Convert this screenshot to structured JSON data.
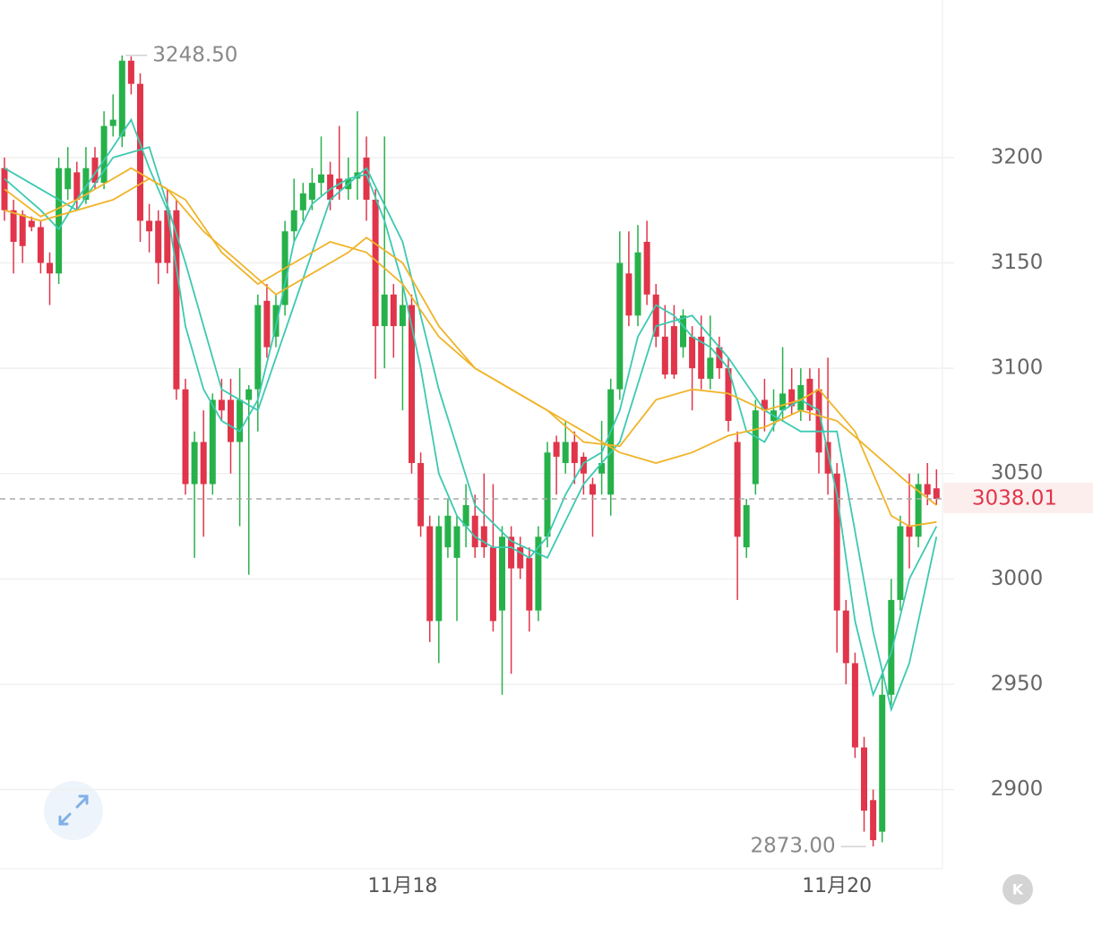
{
  "chart_data": {
    "type": "candlestick",
    "categories": [
      null,
      null,
      null,
      null,
      null,
      null,
      null,
      null,
      null,
      null,
      null,
      null,
      null,
      null,
      null,
      null,
      null,
      null,
      null,
      null,
      null,
      null,
      null,
      null,
      null,
      null,
      null,
      null,
      null,
      null,
      null,
      null,
      null,
      null,
      null,
      null,
      null,
      null,
      null,
      null,
      null,
      null,
      null,
      null,
      "11月18",
      null,
      null,
      null,
      null,
      null,
      null,
      null,
      null,
      null,
      null,
      null,
      null,
      null,
      null,
      null,
      null,
      null,
      null,
      null,
      null,
      null,
      null,
      null,
      null,
      null,
      null,
      null,
      null,
      null,
      null,
      null,
      null,
      null,
      null,
      null,
      null,
      null,
      null,
      null,
      null,
      null,
      null,
      null,
      null,
      null,
      null,
      null,
      "11月20",
      null,
      null,
      null,
      null,
      null,
      null,
      null,
      null,
      null,
      null,
      null
    ],
    "open": [
      3195,
      3175,
      3173,
      3170,
      3167,
      3150,
      3145,
      3185,
      3193,
      3180,
      3200,
      3188,
      3215,
      3210,
      3246,
      3235,
      3170,
      3170,
      3175,
      3175,
      3090,
      3045,
      3065,
      3045,
      3085,
      3085,
      3065,
      3085,
      3090,
      3132,
      3115,
      3130,
      3165,
      3175,
      3180,
      3188,
      3192,
      3190,
      3185,
      3190,
      3200,
      3180,
      3120,
      3135,
      3120,
      3130,
      3055,
      3025,
      2980,
      3015,
      3010,
      3025,
      3030,
      3025,
      3015,
      2985,
      3020,
      3015,
      3010,
      2985,
      3020,
      3065,
      3055,
      3065,
      3058,
      3045,
      3050,
      3040,
      3090,
      3145,
      3125,
      3160,
      3135,
      3115,
      3120,
      3110,
      3115,
      3115,
      3095,
      3110,
      3100,
      3065,
      3015,
      3045,
      3085,
      3075,
      3080,
      3090,
      3080,
      3095,
      3090,
      3065,
      3050,
      2985,
      2960,
      2920,
      2895,
      2880,
      2945,
      2990,
      3025,
      3020,
      3045,
      3043
    ],
    "high": [
      3200,
      3180,
      3175,
      3172,
      3170,
      3155,
      3200,
      3205,
      3198,
      3205,
      3205,
      3222,
      3230,
      3248.5,
      3248,
      3240,
      3178,
      3175,
      3185,
      3180,
      3095,
      3070,
      3080,
      3088,
      3095,
      3095,
      3100,
      3092,
      3135,
      3140,
      3135,
      3170,
      3190,
      3188,
      3195,
      3210,
      3198,
      3215,
      3200,
      3222,
      3210,
      3185,
      3210,
      3140,
      3140,
      3135,
      3060,
      3030,
      3030,
      3038,
      3030,
      3045,
      3040,
      3050,
      3045,
      3025,
      3025,
      3020,
      3015,
      3025,
      3065,
      3068,
      3075,
      3070,
      3060,
      3048,
      3075,
      3095,
      3165,
      3165,
      3168,
      3170,
      3140,
      3130,
      3130,
      3128,
      3120,
      3125,
      3125,
      3115,
      3105,
      3070,
      3038,
      3085,
      3095,
      3090,
      3110,
      3100,
      3100,
      3100,
      3100,
      3105,
      3055,
      2990,
      2965,
      2925,
      2900,
      2955,
      3000,
      3030,
      3050,
      3050,
      3055,
      3052
    ],
    "low": [
      3170,
      3145,
      3150,
      3165,
      3145,
      3130,
      3140,
      3180,
      3175,
      3178,
      3185,
      3185,
      3210,
      3205,
      3230,
      3160,
      3155,
      3140,
      3145,
      3085,
      3040,
      3010,
      3020,
      3040,
      3075,
      3050,
      3025,
      3002,
      3070,
      3105,
      3110,
      3125,
      3160,
      3170,
      3175,
      3182,
      3175,
      3180,
      3180,
      3180,
      3170,
      3095,
      3100,
      3105,
      3080,
      3050,
      3020,
      2970,
      2960,
      3010,
      2980,
      3015,
      3010,
      3010,
      2975,
      2945,
      2955,
      3000,
      2975,
      2980,
      3015,
      3040,
      3050,
      3045,
      3040,
      3020,
      3040,
      3030,
      3085,
      3120,
      3120,
      3130,
      3110,
      3095,
      3095,
      3105,
      3080,
      3090,
      3090,
      3095,
      3070,
      2990,
      3010,
      3040,
      3070,
      3070,
      3075,
      3078,
      3075,
      3075,
      3050,
      3040,
      2965,
      2950,
      2915,
      2880,
      2873,
      2875,
      2940,
      2985,
      3005,
      3015,
      3035,
      3035
    ],
    "close": [
      3175,
      3160,
      3158,
      3167,
      3150,
      3145,
      3195,
      3195,
      3180,
      3195,
      3188,
      3215,
      3218,
      3246,
      3235,
      3170,
      3165,
      3150,
      3150,
      3090,
      3045,
      3065,
      3045,
      3085,
      3080,
      3065,
      3085,
      3090,
      3130,
      3110,
      3130,
      3165,
      3175,
      3183,
      3188,
      3192,
      3180,
      3185,
      3190,
      3193,
      3180,
      3120,
      3135,
      3120,
      3130,
      3055,
      3025,
      2980,
      3025,
      3030,
      3025,
      3035,
      3015,
      3015,
      2980,
      3020,
      3005,
      3005,
      2985,
      3020,
      3060,
      3058,
      3065,
      3055,
      3050,
      3040,
      3055,
      3090,
      3150,
      3125,
      3155,
      3135,
      3115,
      3097,
      3097,
      3125,
      3100,
      3095,
      3105,
      3100,
      3075,
      3020,
      3035,
      3080,
      3080,
      3080,
      3088,
      3082,
      3092,
      3080,
      3060,
      3050,
      2985,
      2960,
      2920,
      2890,
      2876,
      2945,
      2990,
      3025,
      3020,
      3045,
      3040,
      3038.01
    ],
    "up_color": "#27b14a",
    "down_color": "#e0354a",
    "ma": [
      {
        "color": "#3cc9b0",
        "x": [
          0,
          4,
          6,
          8,
          12,
          14,
          16,
          18,
          20,
          22,
          24,
          26,
          28,
          30,
          32,
          34,
          36,
          38,
          40,
          42,
          44,
          46,
          48,
          50,
          52,
          54,
          56,
          58,
          60,
          62,
          64,
          66,
          68,
          70,
          72,
          74,
          76,
          78,
          80,
          82,
          84,
          86,
          88,
          90,
          92,
          94,
          96,
          98,
          100,
          103
        ],
        "values": [
          3190,
          3175,
          3166,
          3180,
          3205,
          3218,
          3195,
          3175,
          3120,
          3090,
          3075,
          3070,
          3085,
          3120,
          3160,
          3178,
          3185,
          3190,
          3192,
          3170,
          3140,
          3100,
          3050,
          3030,
          3020,
          3015,
          3015,
          3010,
          3020,
          3040,
          3055,
          3060,
          3080,
          3115,
          3130,
          3125,
          3115,
          3110,
          3100,
          3070,
          3065,
          3080,
          3085,
          3080,
          3040,
          2980,
          2945,
          2965,
          3000,
          3025
        ]
      },
      {
        "color": "#3cc9b0",
        "x": [
          0,
          4,
          8,
          12,
          16,
          20,
          24,
          28,
          32,
          36,
          40,
          44,
          48,
          52,
          56,
          60,
          64,
          68,
          72,
          76,
          80,
          84,
          88,
          92,
          96,
          98,
          100,
          103
        ],
        "values": [
          3195,
          3185,
          3175,
          3200,
          3205,
          3150,
          3090,
          3080,
          3130,
          3180,
          3195,
          3160,
          3090,
          3035,
          3018,
          3010,
          3045,
          3065,
          3120,
          3125,
          3105,
          3080,
          3070,
          3070,
          2975,
          2938,
          2960,
          3020
        ]
      },
      {
        "color": "#f0b429",
        "x": [
          0,
          4,
          8,
          12,
          14,
          18,
          22,
          26,
          30,
          34,
          38,
          40,
          44,
          48,
          52,
          56,
          60,
          64,
          68,
          72,
          76,
          80,
          84,
          88,
          90,
          94,
          98,
          100,
          103
        ],
        "values": [
          3185,
          3172,
          3180,
          3190,
          3195,
          3185,
          3165,
          3150,
          3135,
          3145,
          3155,
          3162,
          3150,
          3120,
          3100,
          3090,
          3080,
          3065,
          3063,
          3085,
          3090,
          3088,
          3080,
          3085,
          3090,
          3070,
          3030,
          3025,
          3027
        ]
      },
      {
        "color": "#f0b429",
        "x": [
          0,
          4,
          8,
          12,
          16,
          20,
          24,
          28,
          32,
          36,
          40,
          44,
          48,
          52,
          56,
          60,
          64,
          68,
          72,
          76,
          80,
          84,
          88,
          92,
          96,
          100,
          103
        ],
        "values": [
          3175,
          3170,
          3175,
          3180,
          3190,
          3180,
          3155,
          3140,
          3150,
          3160,
          3155,
          3140,
          3115,
          3100,
          3090,
          3080,
          3070,
          3060,
          3055,
          3060,
          3068,
          3072,
          3080,
          3075,
          3060,
          3045,
          3035
        ]
      }
    ],
    "ylim": [
      2862.4,
      3274.8
    ],
    "yticks": [
      2900,
      2950,
      3000,
      3050,
      3100,
      3150,
      3200
    ],
    "grid": true,
    "annotations": [
      {
        "index": 13,
        "value": 3248.5,
        "label": "3248.50"
      },
      {
        "index": 96,
        "value": 2873,
        "label": "2873.00"
      }
    ],
    "last_price": 3038.01,
    "button": "K"
  }
}
